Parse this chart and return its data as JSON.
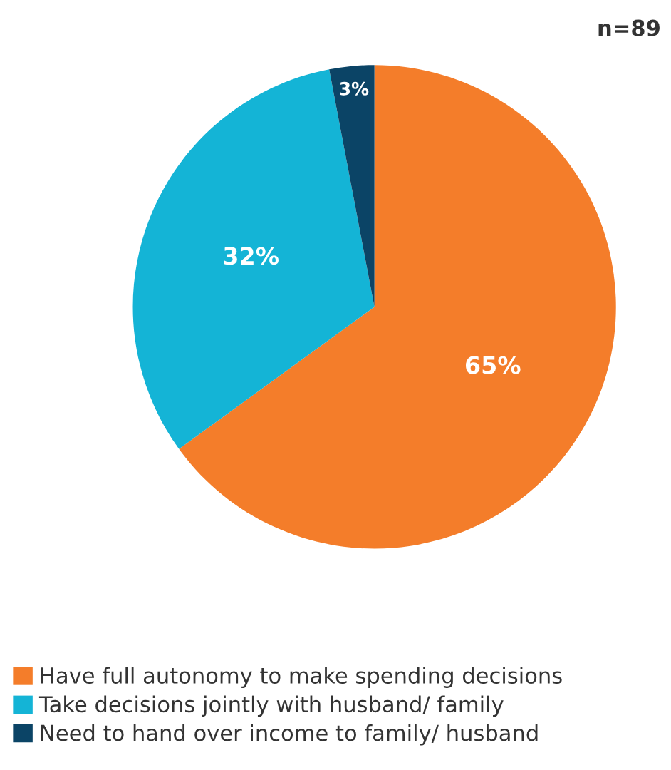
{
  "chart_data": {
    "type": "pie",
    "categories": [
      "Have full autonomy to make spending decisions",
      "Take decisions jointly with husband/ family",
      "Need to hand over income to family/ husband"
    ],
    "values": [
      65,
      32,
      3
    ],
    "colors": [
      "#f47d2a",
      "#14b4d6",
      "#0b4466"
    ],
    "value_labels": [
      "65%",
      "32%",
      "3%"
    ],
    "legend": "bottom",
    "annotations": [
      "n=89"
    ]
  }
}
